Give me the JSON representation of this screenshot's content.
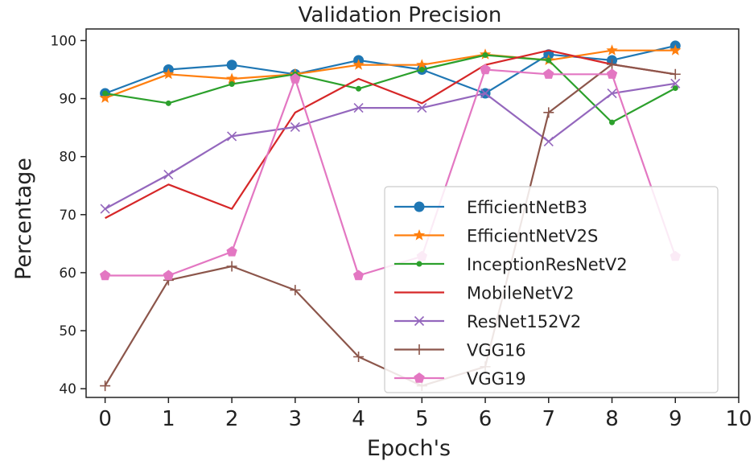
{
  "chart_data": {
    "type": "line",
    "title": "Validation Precision",
    "xlabel": "Epoch's",
    "ylabel": "Percentage",
    "xlim": [
      -0.3,
      10
    ],
    "ylim": [
      38.5,
      102
    ],
    "xticks": [
      "0",
      "1",
      "2",
      "3",
      "4",
      "5",
      "6",
      "7",
      "8",
      "9",
      "10"
    ],
    "yticks": [
      "40",
      "50",
      "60",
      "70",
      "80",
      "90",
      "100"
    ],
    "grid": false,
    "legend_position": "center-right",
    "x": [
      0,
      1,
      2,
      3,
      4,
      5,
      6,
      7,
      8,
      9
    ],
    "series": [
      {
        "name": "EfficientNetB3",
        "color": "#1f77b4",
        "marker": "circle",
        "values": [
          90.9,
          95.0,
          95.8,
          94.2,
          96.6,
          95.0,
          90.9,
          97.6,
          96.6,
          99.1
        ]
      },
      {
        "name": "EfficientNetV2S",
        "color": "#ff7f0e",
        "marker": "star",
        "values": [
          90.1,
          94.2,
          93.4,
          94.2,
          95.8,
          95.8,
          97.6,
          96.6,
          98.3,
          98.3
        ]
      },
      {
        "name": "InceptionResNetV2",
        "color": "#2ca02c",
        "marker": "dot",
        "values": [
          90.9,
          89.2,
          92.5,
          94.2,
          91.7,
          95.0,
          97.5,
          96.6,
          85.9,
          91.8
        ]
      },
      {
        "name": "MobileNetV2",
        "color": "#d62728",
        "marker": "none",
        "values": [
          69.4,
          75.2,
          71.0,
          87.6,
          93.4,
          89.2,
          95.8,
          98.3,
          95.9,
          94.2
        ]
      },
      {
        "name": "ResNet152V2",
        "color": "#9467bd",
        "marker": "x",
        "values": [
          71.0,
          76.9,
          83.5,
          85.1,
          88.4,
          88.4,
          90.9,
          82.6,
          90.9,
          92.6
        ]
      },
      {
        "name": "VGG16",
        "color": "#8c564b",
        "marker": "plus",
        "values": [
          40.5,
          58.7,
          61.1,
          57.0,
          45.5,
          40.5,
          43.8,
          87.6,
          95.9,
          94.2
        ]
      },
      {
        "name": "VGG19",
        "color": "#e377c2",
        "marker": "pentagon",
        "values": [
          59.5,
          59.5,
          63.6,
          93.4,
          59.5,
          62.8,
          95.0,
          94.2,
          94.2,
          62.8
        ]
      }
    ]
  }
}
